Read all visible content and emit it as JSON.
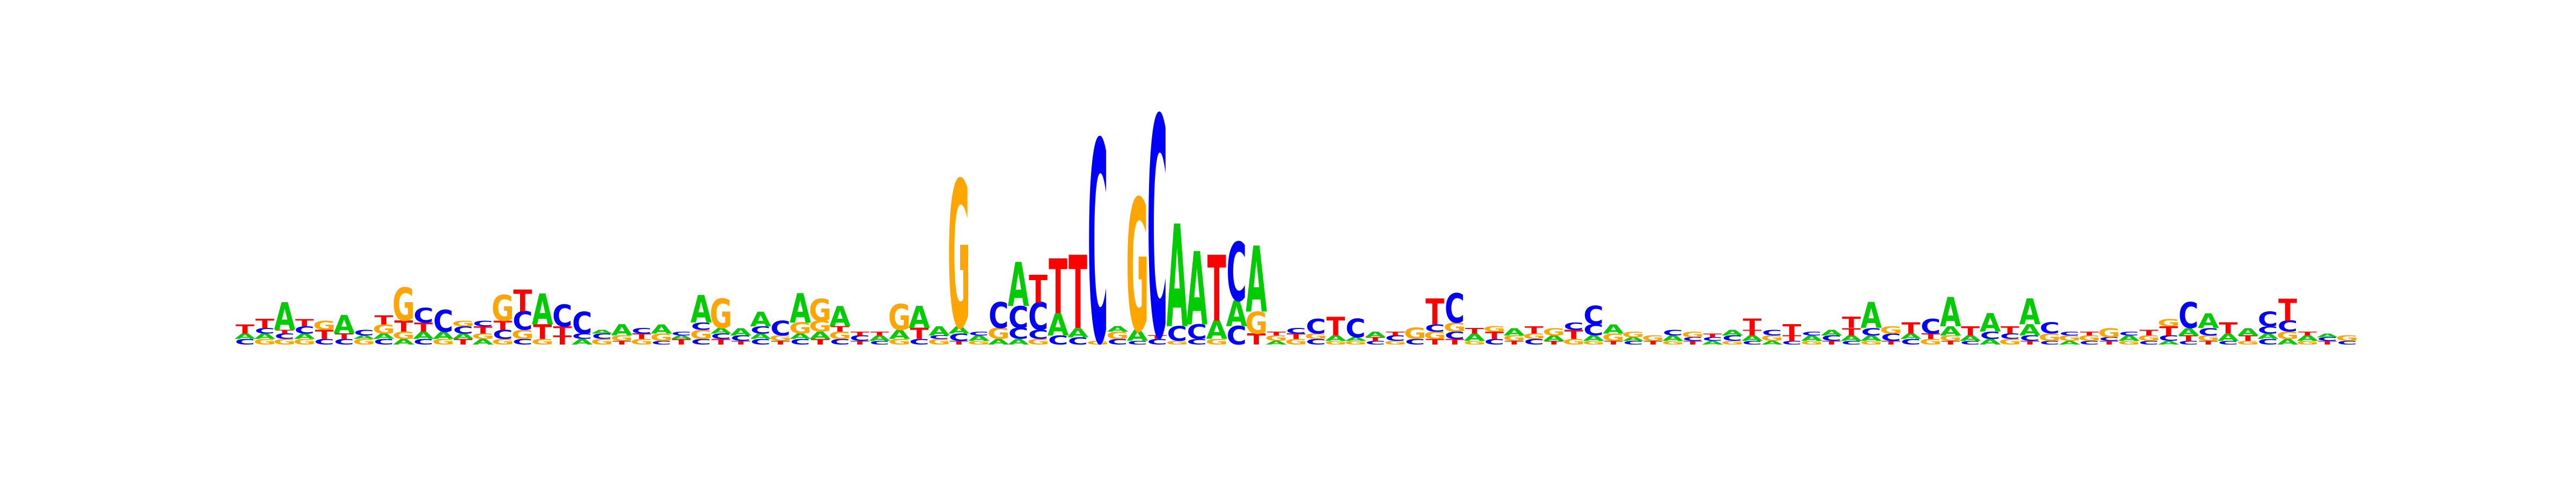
{
  "alphabet": {
    "A": "#00cc00",
    "C": "#0000ff",
    "G": "#ffa500",
    "T": "#ff0000"
  },
  "logo": {
    "max_bits": 2,
    "columns": [
      [
        [
          "C",
          0.03
        ],
        [
          "A",
          0.03
        ],
        [
          "T",
          0.05
        ]
      ],
      [
        [
          "G",
          0.03
        ],
        [
          "A",
          0.03
        ],
        [
          "C",
          0.03
        ],
        [
          "T",
          0.05
        ]
      ],
      [
        [
          "G",
          0.03
        ],
        [
          "C",
          0.03
        ],
        [
          "T",
          0.02
        ],
        [
          "A",
          0.15
        ]
      ],
      [
        [
          "G",
          0.03
        ],
        [
          "A",
          0.03
        ],
        [
          "C",
          0.04
        ],
        [
          "T",
          0.04
        ]
      ],
      [
        [
          "C",
          0.03
        ],
        [
          "T",
          0.05
        ],
        [
          "G",
          0.05
        ]
      ],
      [
        [
          "C",
          0.03
        ],
        [
          "T",
          0.03
        ],
        [
          "A",
          0.1
        ]
      ],
      [
        [
          "G",
          0.03
        ],
        [
          "A",
          0.02
        ],
        [
          "C",
          0.03
        ]
      ],
      [
        [
          "C",
          0.03
        ],
        [
          "A",
          0.03
        ],
        [
          "G",
          0.05
        ],
        [
          "T",
          0.05
        ]
      ],
      [
        [
          "A",
          0.03
        ],
        [
          "G",
          0.04
        ],
        [
          "T",
          0.06
        ],
        [
          "G",
          0.18
        ]
      ],
      [
        [
          "C",
          0.03
        ],
        [
          "A",
          0.04
        ],
        [
          "T",
          0.05
        ],
        [
          "C",
          0.08
        ]
      ],
      [
        [
          "G",
          0.03
        ],
        [
          "A",
          0.04
        ],
        [
          "C",
          0.12
        ]
      ],
      [
        [
          "T",
          0.03
        ],
        [
          "A",
          0.03
        ],
        [
          "C",
          0.04
        ],
        [
          "G",
          0.03
        ]
      ],
      [
        [
          "A",
          0.03
        ],
        [
          "G",
          0.03
        ],
        [
          "T",
          0.04
        ],
        [
          "C",
          0.03
        ]
      ],
      [
        [
          "G",
          0.03
        ],
        [
          "C",
          0.05
        ],
        [
          "T",
          0.05
        ],
        [
          "G",
          0.14
        ]
      ],
      [
        [
          "C",
          0.03
        ],
        [
          "G",
          0.05
        ],
        [
          "C",
          0.1
        ],
        [
          "T",
          0.12
        ]
      ],
      [
        [
          "G",
          0.03
        ],
        [
          "T",
          0.08
        ],
        [
          "A",
          0.17
        ]
      ],
      [
        [
          "T",
          0.05
        ],
        [
          "T",
          0.05
        ],
        [
          "C",
          0.12
        ]
      ],
      [
        [
          "A",
          0.03
        ],
        [
          "C",
          0.03
        ],
        [
          "C",
          0.12
        ]
      ],
      [
        [
          "G",
          0.03
        ],
        [
          "C",
          0.03
        ],
        [
          "A",
          0.02
        ]
      ],
      [
        [
          "T",
          0.02
        ],
        [
          "G",
          0.03
        ],
        [
          "A",
          0.06
        ]
      ],
      [
        [
          "G",
          0.03
        ],
        [
          "T",
          0.03
        ],
        [
          "C",
          0.03
        ]
      ],
      [
        [
          "C",
          0.02
        ],
        [
          "G",
          0.04
        ],
        [
          "A",
          0.05
        ]
      ],
      [
        [
          "T",
          0.03
        ],
        [
          "A",
          0.02
        ],
        [
          "C",
          0.02
        ]
      ],
      [
        [
          "C",
          0.03
        ],
        [
          "G",
          0.05
        ],
        [
          "C",
          0.04
        ],
        [
          "A",
          0.15
        ]
      ],
      [
        [
          "T",
          0.03
        ],
        [
          "C",
          0.03
        ],
        [
          "A",
          0.03
        ],
        [
          "G",
          0.16
        ]
      ],
      [
        [
          "T",
          0.02
        ],
        [
          "C",
          0.03
        ],
        [
          "A",
          0.04
        ]
      ],
      [
        [
          "C",
          0.03
        ],
        [
          "A",
          0.03
        ],
        [
          "C",
          0.04
        ],
        [
          "A",
          0.08
        ]
      ],
      [
        [
          "T",
          0.02
        ],
        [
          "G",
          0.03
        ],
        [
          "C",
          0.08
        ]
      ],
      [
        [
          "C",
          0.03
        ],
        [
          "A",
          0.03
        ],
        [
          "G",
          0.06
        ],
        [
          "A",
          0.16
        ]
      ],
      [
        [
          "T",
          0.03
        ],
        [
          "A",
          0.04
        ],
        [
          "G",
          0.06
        ],
        [
          "G",
          0.12
        ]
      ],
      [
        [
          "C",
          0.03
        ],
        [
          "G",
          0.04
        ],
        [
          "T",
          0.03
        ],
        [
          "A",
          0.11
        ]
      ],
      [
        [
          "T",
          0.02
        ],
        [
          "C",
          0.03
        ],
        [
          "T",
          0.02
        ]
      ],
      [
        [
          "C",
          0.02
        ],
        [
          "A",
          0.03
        ],
        [
          "T",
          0.02
        ]
      ],
      [
        [
          "G",
          0.03
        ],
        [
          "A",
          0.05
        ],
        [
          "G",
          0.14
        ]
      ],
      [
        [
          "C",
          0.03
        ],
        [
          "T",
          0.06
        ],
        [
          "A",
          0.12
        ]
      ],
      [
        [
          "G",
          0.03
        ],
        [
          "C",
          0.02
        ],
        [
          "A",
          0.05
        ]
      ],
      [
        [
          "T",
          0.02
        ],
        [
          "C",
          0.04
        ],
        [
          "A",
          0.04
        ],
        [
          "G",
          0.8
        ]
      ],
      [
        [
          "G",
          0.02
        ],
        [
          "A",
          0.03
        ],
        [
          "C",
          0.02
        ]
      ],
      [
        [
          "A",
          0.03
        ],
        [
          "G",
          0.06
        ],
        [
          "C",
          0.14
        ]
      ],
      [
        [
          "A",
          0.03
        ],
        [
          "C",
          0.06
        ],
        [
          "C",
          0.12
        ],
        [
          "A",
          0.24
        ]
      ],
      [
        [
          "G",
          0.03
        ],
        [
          "C",
          0.05
        ],
        [
          "C",
          0.15
        ],
        [
          "T",
          0.15
        ]
      ],
      [
        [
          "C",
          0.05
        ],
        [
          "A",
          0.12
        ],
        [
          "T",
          0.3
        ]
      ],
      [
        [
          "C",
          0.04
        ],
        [
          "A",
          0.05
        ],
        [
          "T",
          0.4
        ]
      ],
      [
        [
          "G",
          0.02
        ],
        [
          "C",
          1.1
        ]
      ],
      [
        [
          "C",
          0.03
        ],
        [
          "G",
          0.04
        ],
        [
          "A",
          0.03
        ]
      ],
      [
        [
          "C",
          0.02
        ],
        [
          "A",
          0.06
        ],
        [
          "G",
          0.72
        ]
      ],
      [
        [
          "C",
          0.03
        ],
        [
          "T",
          0.02
        ],
        [
          "C",
          1.2
        ]
      ],
      [
        [
          "G",
          0.02
        ],
        [
          "C",
          0.08
        ],
        [
          "A",
          0.56
        ]
      ],
      [
        [
          "C",
          0.03
        ],
        [
          "C",
          0.08
        ],
        [
          "A",
          0.4
        ]
      ],
      [
        [
          "G",
          0.03
        ],
        [
          "A",
          0.1
        ],
        [
          "T",
          0.36
        ]
      ],
      [
        [
          "C",
          0.1
        ],
        [
          "A",
          0.14
        ],
        [
          "C",
          0.32
        ]
      ],
      [
        [
          "T",
          0.06
        ],
        [
          "G",
          0.12
        ],
        [
          "A",
          0.36
        ]
      ],
      [
        [
          "A",
          0.02
        ],
        [
          "G",
          0.03
        ],
        [
          "T",
          0.02
        ]
      ],
      [
        [
          "G",
          0.03
        ],
        [
          "T",
          0.03
        ],
        [
          "C",
          0.03
        ]
      ],
      [
        [
          "C",
          0.03
        ],
        [
          "G",
          0.03
        ],
        [
          "C",
          0.08
        ]
      ],
      [
        [
          "G",
          0.02
        ],
        [
          "A",
          0.03
        ],
        [
          "T",
          0.1
        ]
      ],
      [
        [
          "G",
          0.02
        ],
        [
          "A",
          0.02
        ],
        [
          "C",
          0.1
        ]
      ],
      [
        [
          "C",
          0.02
        ],
        [
          "T",
          0.02
        ],
        [
          "A",
          0.03
        ]
      ],
      [
        [
          "G",
          0.02
        ],
        [
          "C",
          0.03
        ],
        [
          "T",
          0.02
        ]
      ],
      [
        [
          "C",
          0.03
        ],
        [
          "G",
          0.06
        ]
      ],
      [
        [
          "T",
          0.03
        ],
        [
          "G",
          0.04
        ],
        [
          "C",
          0.04
        ],
        [
          "T",
          0.14
        ]
      ],
      [
        [
          "T",
          0.03
        ],
        [
          "C",
          0.04
        ],
        [
          "G",
          0.05
        ],
        [
          "C",
          0.16
        ]
      ],
      [
        [
          "G",
          0.02
        ],
        [
          "A",
          0.04
        ],
        [
          "T",
          0.03
        ]
      ],
      [
        [
          "C",
          0.03
        ],
        [
          "T",
          0.04
        ],
        [
          "G",
          0.03
        ]
      ],
      [
        [
          "T",
          0.02
        ],
        [
          "G",
          0.03
        ],
        [
          "A",
          0.04
        ]
      ],
      [
        [
          "C",
          0.03
        ],
        [
          "G",
          0.03
        ],
        [
          "T",
          0.04
        ]
      ],
      [
        [
          "T",
          0.02
        ],
        [
          "A",
          0.03
        ],
        [
          "G",
          0.04
        ]
      ],
      [
        [
          "G",
          0.03
        ],
        [
          "T",
          0.05
        ],
        [
          "C",
          0.04
        ]
      ],
      [
        [
          "G",
          0.02
        ],
        [
          "A",
          0.03
        ],
        [
          "C",
          0.06
        ],
        [
          "C",
          0.1
        ]
      ],
      [
        [
          "T",
          0.02
        ],
        [
          "G",
          0.04
        ],
        [
          "A",
          0.05
        ]
      ],
      [
        [
          "C",
          0.02
        ],
        [
          "A",
          0.02
        ],
        [
          "G",
          0.03
        ]
      ],
      [
        [
          "T",
          0.02
        ],
        [
          "G",
          0.03
        ]
      ],
      [
        [
          "G",
          0.02
        ],
        [
          "A",
          0.03
        ],
        [
          "C",
          0.03
        ]
      ],
      [
        [
          "T",
          0.02
        ],
        [
          "C",
          0.02
        ],
        [
          "G",
          0.03
        ]
      ],
      [
        [
          "A",
          0.02
        ],
        [
          "C",
          0.02
        ],
        [
          "T",
          0.02
        ]
      ],
      [
        [
          "G",
          0.02
        ],
        [
          "C",
          0.03
        ],
        [
          "A",
          0.03
        ]
      ],
      [
        [
          "C",
          0.02
        ],
        [
          "A",
          0.03
        ],
        [
          "T",
          0.03
        ],
        [
          "T",
          0.06
        ]
      ],
      [
        [
          "A",
          0.02
        ],
        [
          "G",
          0.03
        ],
        [
          "C",
          0.03
        ]
      ],
      [
        [
          "C",
          0.02
        ],
        [
          "T",
          0.03
        ],
        [
          "T",
          0.06
        ]
      ],
      [
        [
          "G",
          0.02
        ],
        [
          "A",
          0.03
        ],
        [
          "C",
          0.02
        ]
      ],
      [
        [
          "T",
          0.02
        ],
        [
          "C",
          0.03
        ],
        [
          "A",
          0.03
        ]
      ],
      [
        [
          "C",
          0.02
        ],
        [
          "A",
          0.03
        ],
        [
          "T",
          0.04
        ],
        [
          "T",
          0.06
        ]
      ],
      [
        [
          "G",
          0.02
        ],
        [
          "A",
          0.03
        ],
        [
          "C",
          0.04
        ],
        [
          "A",
          0.14
        ]
      ],
      [
        [
          "T",
          0.02
        ],
        [
          "C",
          0.04
        ],
        [
          "G",
          0.04
        ]
      ],
      [
        [
          "C",
          0.03
        ],
        [
          "A",
          0.03
        ],
        [
          "T",
          0.06
        ]
      ],
      [
        [
          "G",
          0.03
        ],
        [
          "T",
          0.03
        ],
        [
          "C",
          0.08
        ]
      ],
      [
        [
          "T",
          0.02
        ],
        [
          "G",
          0.03
        ],
        [
          "A",
          0.05
        ],
        [
          "A",
          0.16
        ]
      ],
      [
        [
          "C",
          0.02
        ],
        [
          "A",
          0.03
        ],
        [
          "T",
          0.05
        ]
      ],
      [
        [
          "A",
          0.03
        ],
        [
          "C",
          0.04
        ],
        [
          "A",
          0.1
        ]
      ],
      [
        [
          "G",
          0.03
        ],
        [
          "C",
          0.03
        ],
        [
          "T",
          0.04
        ]
      ],
      [
        [
          "T",
          0.02
        ],
        [
          "C",
          0.03
        ],
        [
          "A",
          0.06
        ],
        [
          "A",
          0.14
        ]
      ],
      [
        [
          "C",
          0.02
        ],
        [
          "G",
          0.04
        ],
        [
          "C",
          0.06
        ]
      ],
      [
        [
          "A",
          0.02
        ],
        [
          "G",
          0.03
        ],
        [
          "C",
          0.02
        ]
      ],
      [
        [
          "C",
          0.02
        ],
        [
          "G",
          0.03
        ],
        [
          "T",
          0.02
        ]
      ],
      [
        [
          "T",
          0.02
        ],
        [
          "C",
          0.02
        ],
        [
          "G",
          0.05
        ]
      ],
      [
        [
          "G",
          0.02
        ],
        [
          "A",
          0.03
        ],
        [
          "C",
          0.02
        ]
      ],
      [
        [
          "C",
          0.02
        ],
        [
          "G",
          0.03
        ],
        [
          "T",
          0.03
        ]
      ],
      [
        [
          "A",
          0.02
        ],
        [
          "C",
          0.03
        ],
        [
          "T",
          0.05
        ],
        [
          "G",
          0.04
        ]
      ],
      [
        [
          "C",
          0.02
        ],
        [
          "T",
          0.03
        ],
        [
          "A",
          0.04
        ],
        [
          "C",
          0.14
        ]
      ],
      [
        [
          "T",
          0.02
        ],
        [
          "G",
          0.03
        ],
        [
          "C",
          0.04
        ],
        [
          "A",
          0.08
        ]
      ],
      [
        [
          "C",
          0.02
        ],
        [
          "A",
          0.04
        ],
        [
          "T",
          0.06
        ]
      ],
      [
        [
          "G",
          0.02
        ],
        [
          "T",
          0.03
        ],
        [
          "A",
          0.04
        ]
      ],
      [
        [
          "C",
          0.03
        ],
        [
          "A",
          0.03
        ],
        [
          "C",
          0.04
        ],
        [
          "C",
          0.08
        ]
      ],
      [
        [
          "A",
          0.03
        ],
        [
          "G",
          0.04
        ],
        [
          "C",
          0.06
        ],
        [
          "T",
          0.12
        ]
      ],
      [
        [
          "G",
          0.02
        ],
        [
          "A",
          0.03
        ],
        [
          "T",
          0.02
        ]
      ],
      [
        [
          "T",
          0.02
        ],
        [
          "C",
          0.02
        ],
        [
          "A",
          0.02
        ]
      ],
      [
        [
          "C",
          0.02
        ],
        [
          "G",
          0.03
        ]
      ]
    ]
  }
}
